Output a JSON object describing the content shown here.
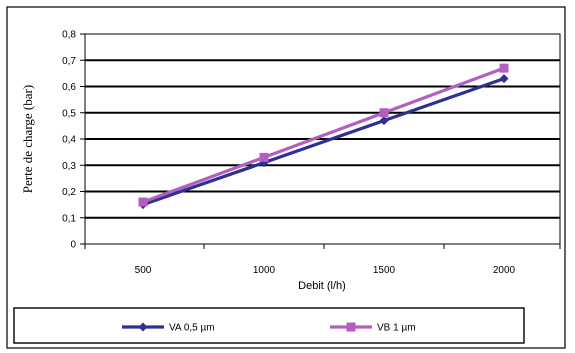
{
  "chart_data": {
    "type": "line",
    "title": "",
    "xlabel": "Debit  (l/h)",
    "ylabel": "Perte de charge (bar)",
    "categories": [
      "500",
      "1000",
      "1500",
      "2000"
    ],
    "yticks": [
      "0",
      "0,1",
      "0,2",
      "0,3",
      "0,4",
      "0,5",
      "0,6",
      "0,7",
      "0,8"
    ],
    "ylim": [
      0,
      0.8
    ],
    "grid": "horizontal",
    "legend": "bottom",
    "series": [
      {
        "name": "VA 0,5 µm",
        "values": [
          0.15,
          0.31,
          0.47,
          0.63
        ],
        "color": "#2e3192",
        "marker": "diamond"
      },
      {
        "name": "VB 1 µm",
        "values": [
          0.16,
          0.33,
          0.5,
          0.67
        ],
        "color": "#b35fbf",
        "marker": "square"
      }
    ]
  }
}
